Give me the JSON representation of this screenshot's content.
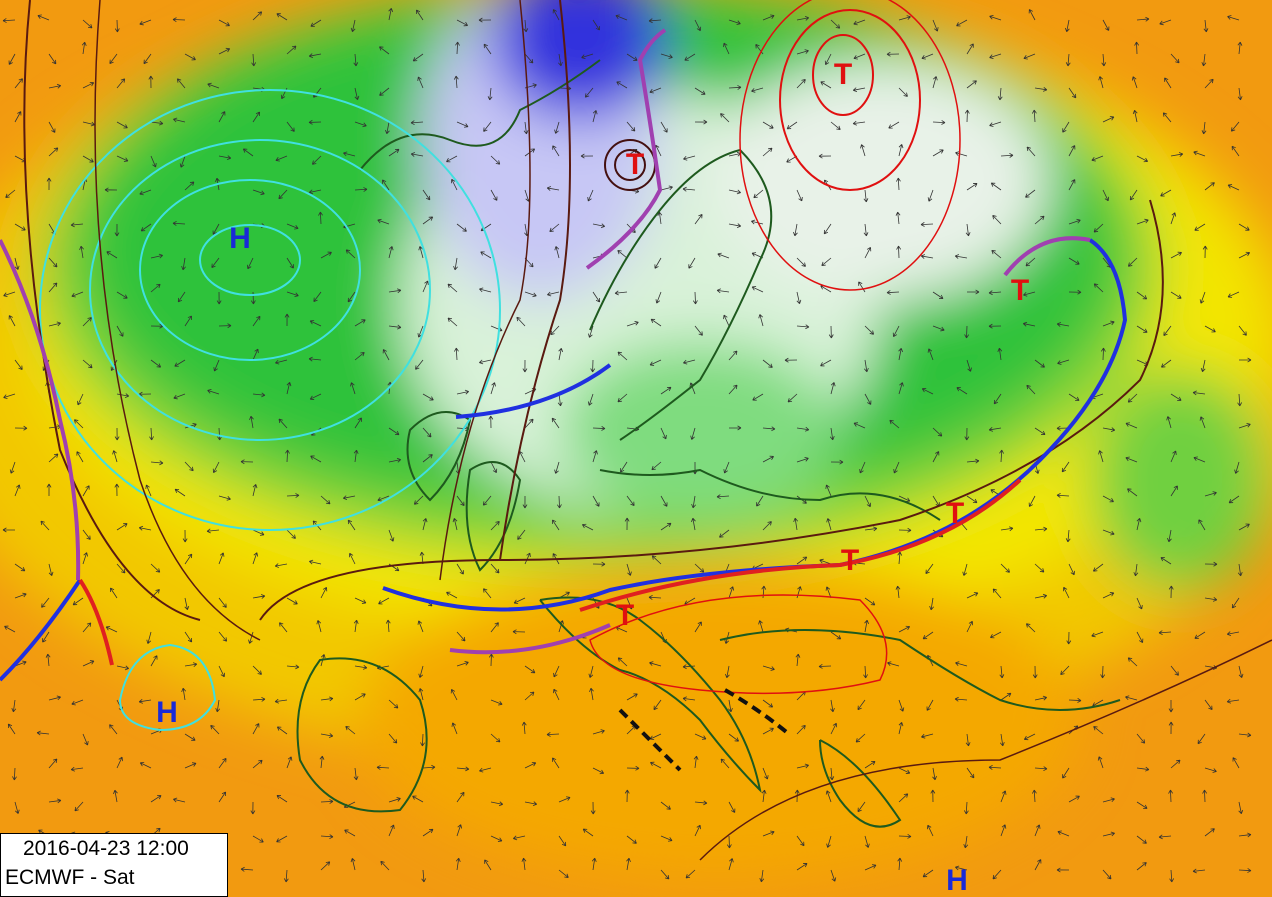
{
  "info_box": {
    "timestamp": "2016-04-23 12:00",
    "model": "ECMWF - Sat"
  },
  "pressure_centers": [
    {
      "label": "H"
    },
    {
      "label": "H"
    },
    {
      "label": "H"
    },
    {
      "label": "T"
    },
    {
      "label": "T"
    },
    {
      "label": "T"
    },
    {
      "label": "T"
    },
    {
      "label": "T"
    },
    {
      "label": "T"
    }
  ]
}
